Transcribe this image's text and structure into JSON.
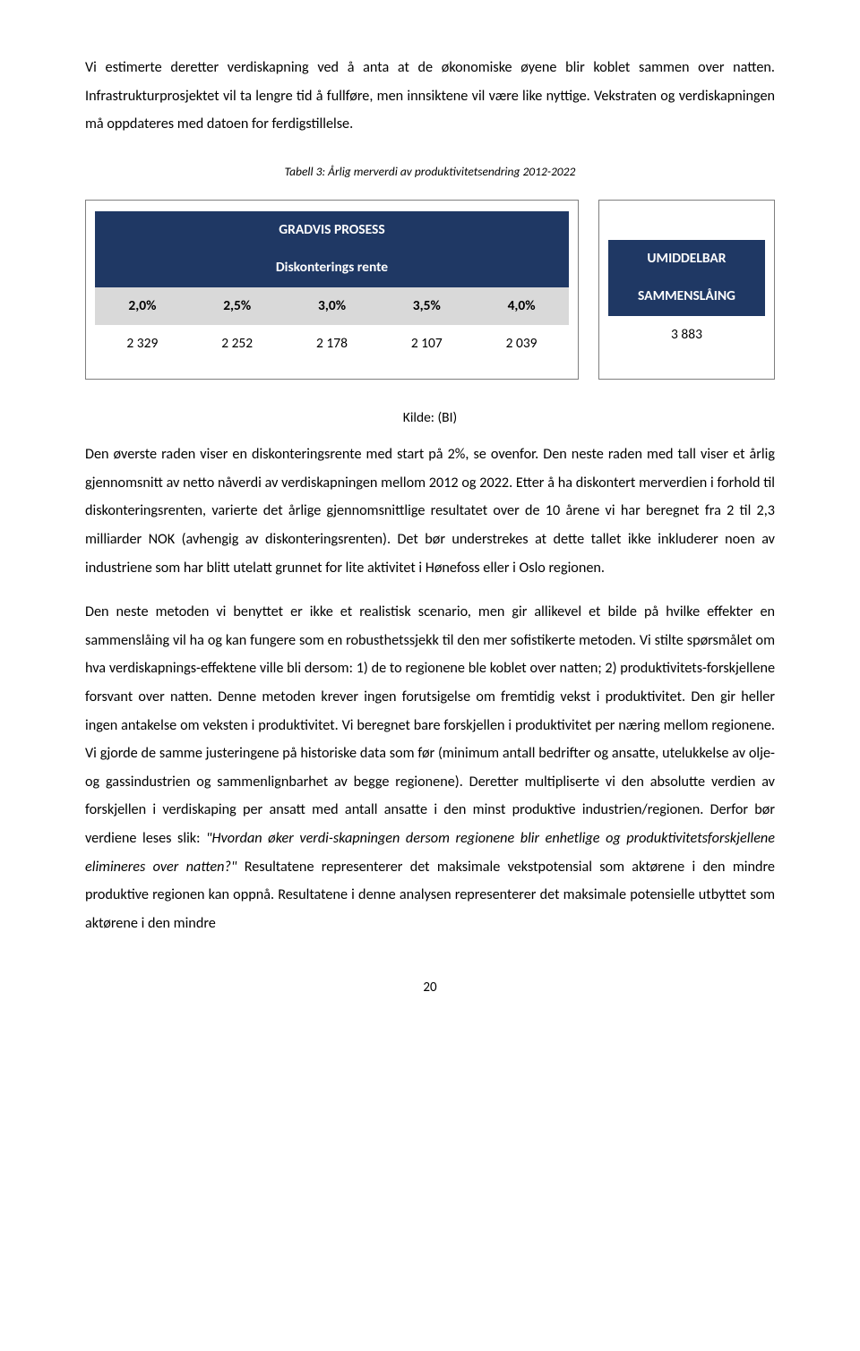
{
  "para_intro": "Vi estimerte deretter verdiskapning ved å anta at de økonomiske øyene blir koblet sammen over natten. Infrastrukturprosjektet vil ta lengre tid å fullføre, men innsiktene vil være like nyttige. Vekstraten og verdiskapningen må oppdateres med datoen for ferdigstillelse.",
  "caption": "Tabell 3: Årlig merverdi av produktivitetsendring 2012-2022",
  "table_left": {
    "title": "GRADVIS PROSESS",
    "subtitle": "Diskonterings rente",
    "headers": [
      "2,0%",
      "2,5%",
      "3,0%",
      "3,5%",
      "4,0%"
    ],
    "values": [
      "2 329",
      "2 252",
      "2 178",
      "2 107",
      "2 039"
    ],
    "colors": {
      "header_bg": "#1f3864",
      "header_fg": "#ffffff",
      "subhead_bg": "#d9d9d9",
      "border": "#7f7f7f"
    }
  },
  "table_right": {
    "line1": "UMIDDELBAR",
    "line2": "SAMMENSLÅING",
    "value": "3 883",
    "colors": {
      "header_bg": "#1f3864",
      "header_fg": "#ffffff"
    }
  },
  "kilde": "Kilde: (BI)",
  "para_mid": {
    "text": "Den øverste raden viser en diskonteringsrente med start på 2%, se ovenfor. Den neste raden med tall viser et årlig gjennomsnitt av netto nåverdi av verdiskapningen mellom 2012 og 2022. Etter å ha diskontert merverdien i forhold til diskonteringsrenten, varierte det årlige gjennomsnittlige resultatet over de 10 årene vi har beregnet fra 2 til 2,3 milliarder NOK (avhengig av diskonteringsrenten). Det bør understrekes at dette tallet ikke inkluderer noen av industriene som har blitt utelatt grunnet for lite aktivitet i Hønefoss eller i Oslo regionen."
  },
  "para_long_pre": "Den neste metoden vi benyttet er ikke et realistisk scenario, men gir allikevel et bilde på hvilke effekter en sammenslåing vil ha og kan fungere som en robusthetssjekk til den mer sofistikerte metoden. Vi stilte spørsmålet om hva verdiskapnings-effektene ville bli dersom: 1) de to regionene ble koblet over natten; 2) produktivitets-forskjellene forsvant over natten. Denne metoden krever ingen forutsigelse om fremtidig vekst i produktivitet. Den gir heller ingen antakelse om veksten i produktivitet. Vi beregnet bare forskjellen i produktivitet per næring mellom regionene. Vi gjorde de samme justeringene på historiske data som før (minimum antall bedrifter og ansatte, utelukkelse av olje- og gassindustrien og sammenlignbarhet av begge regionene). Deretter multipliserte vi den absolutte verdien av forskjellen i verdiskaping per ansatt med antall ansatte i den minst produktive industrien/regionen. Derfor bør verdiene leses slik: ",
  "para_long_quote": "\"Hvordan øker verdi-skapningen dersom regionene blir enhetlige og produktivitetsforskjellene elimineres over natten?\"",
  "para_long_post": " Resultatene representerer det maksimale vekstpotensial som aktørene i den mindre produktive regionen kan oppnå. Resultatene i denne analysen representerer det maksimale potensielle utbyttet som aktørene i den mindre",
  "page_number": "20"
}
